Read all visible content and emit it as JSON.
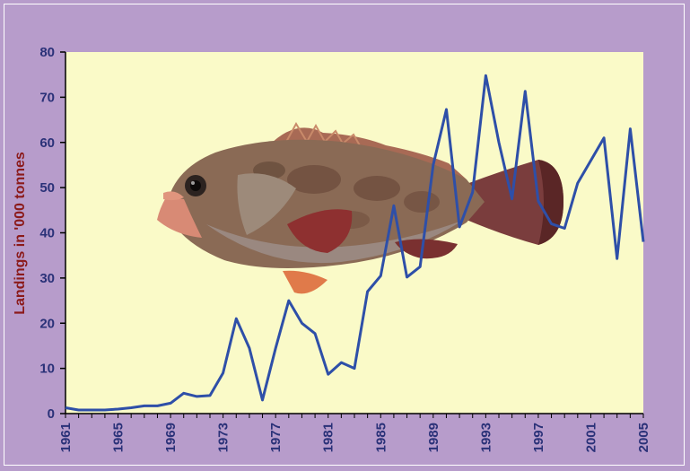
{
  "chart_data": {
    "type": "line",
    "title": "",
    "xlabel": "",
    "ylabel": "Landings in '000 tonnes",
    "xlim": [
      1961,
      2005
    ],
    "ylim": [
      0,
      80
    ],
    "y_ticks": [
      "0",
      "10",
      "20",
      "30",
      "40",
      "50",
      "60",
      "70",
      "80"
    ],
    "x_ticks": [
      "1961",
      "1965",
      "1969",
      "1973",
      "1977",
      "1981",
      "1985",
      "1989",
      "1993",
      "1997",
      "2001",
      "2005"
    ],
    "grid": false,
    "legend": "none",
    "colors": {
      "line": "#2e4fa8",
      "plot_bg": "#fafac8",
      "page_bg": "#b79ccb",
      "ylabel": "#8b1a1a",
      "ticks": "#2a3178"
    },
    "series": [
      {
        "x": [
          1961,
          1962,
          1963,
          1964,
          1965,
          1966,
          1967,
          1968,
          1969,
          1970,
          1971,
          1972,
          1973,
          1974,
          1975,
          1976,
          1977,
          1978,
          1979,
          1980,
          1981,
          1982,
          1983,
          1984,
          1985,
          1986,
          1987,
          1988,
          1989,
          1990,
          1991,
          1992,
          1993,
          1994,
          1995,
          1996,
          1997,
          1998,
          1999,
          2000,
          2001,
          2002,
          2003,
          2004,
          2005
        ],
        "values": [
          1.3,
          0.8,
          0.8,
          0.8,
          1.0,
          1.3,
          1.7,
          1.7,
          2.3,
          4.5,
          3.8,
          4.0,
          9.0,
          21.0,
          14.5,
          3.0,
          14.5,
          25.0,
          20.0,
          17.7,
          8.7,
          11.3,
          10.0,
          27.0,
          30.5,
          46.0,
          30.2,
          32.5,
          55.0,
          67.3,
          41.3,
          49.0,
          74.8,
          60.0,
          47.5,
          71.3,
          47.0,
          42.0,
          41.0,
          51.0,
          56.0,
          61.0,
          34.3,
          63.0,
          38.0
        ]
      }
    ]
  },
  "illustration": {
    "icon": "grouper-fish-icon"
  }
}
